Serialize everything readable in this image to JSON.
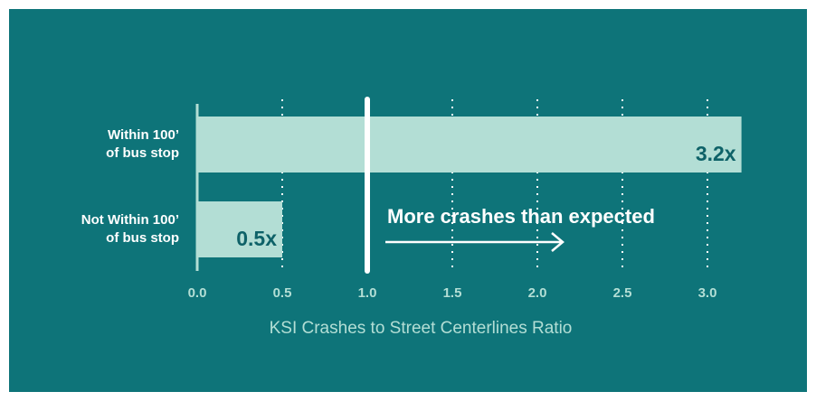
{
  "chart_data": {
    "type": "hbar",
    "categories": [
      "Within 100’\nof bus stop",
      "Not Within 100’\nof bus stop"
    ],
    "values": [
      3.2,
      0.5
    ],
    "value_labels": [
      "3.2x",
      "0.5x"
    ],
    "color": "#b3ded5",
    "xlabel": "KSI Crashes to Street Centerlines Ratio",
    "xlim": [
      0,
      3.25
    ],
    "xticks": [
      {
        "value": 0,
        "label": "0.0"
      },
      0.5,
      {
        "value": 1,
        "label": "1.0"
      },
      1.5,
      {
        "value": 2,
        "label": "2.0"
      },
      2.5,
      {
        "value": 3,
        "label": "3.0"
      }
    ],
    "grid": true,
    "reference_line": {
      "value": 1,
      "label": "More crashes than expected"
    }
  }
}
